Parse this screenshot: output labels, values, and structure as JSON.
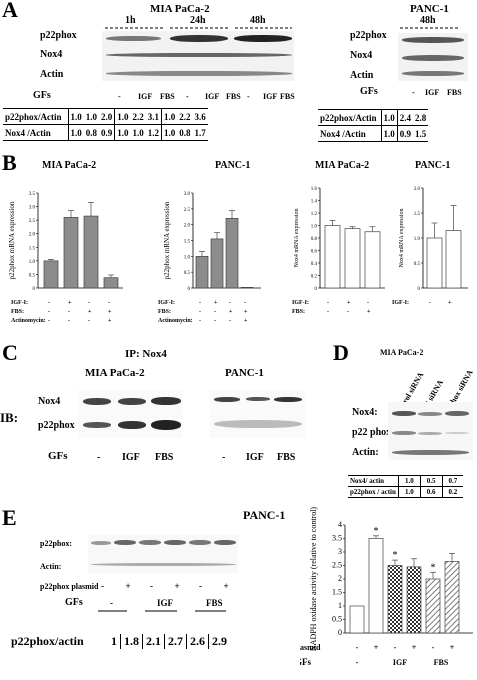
{
  "panels": [
    "A",
    "B",
    "C",
    "D",
    "E"
  ],
  "A": {
    "mia_title": "MIA PaCa-2",
    "panc_title": "PANC-1",
    "times": [
      "1h",
      "24h",
      "48h"
    ],
    "panc_time": "48h",
    "rows": [
      "p22phox",
      "Nox4",
      "Actin"
    ],
    "gfs_label": "GFs",
    "gfs": [
      "-",
      "IGF",
      "FBS"
    ],
    "ratio_label": "p22phox/Actin",
    "nox_ratio_label": "Nox4 /Actin",
    "mia_p22": [
      "1.0",
      "1.0",
      "2.0",
      "1.0",
      "2.2",
      "3.1",
      "1.0",
      "2.2",
      "3.6"
    ],
    "mia_nox": [
      "1.0",
      "0.8",
      "0.9",
      "1.0",
      "1.0",
      "1.2",
      "1.0",
      "0.8",
      "1.7"
    ],
    "panc_p22": [
      "1.0",
      "2.4",
      "2.8"
    ],
    "panc_nox": [
      "1.0",
      "0.9",
      "1.5"
    ]
  },
  "B": {
    "titles": [
      "MIA PaCa-2",
      "PANC-1",
      "MIA PaCa-2",
      "PANC-1"
    ],
    "row_labels_4": [
      "IGF-I:",
      "FBS:",
      "Actinomycin:"
    ],
    "row_labels_3": [
      "IGF-I:",
      "FBS:"
    ],
    "row_labels_2": [
      "IGF-I:"
    ],
    "signs": [
      [
        "-",
        "+",
        "-",
        "-"
      ],
      [
        "-",
        "-",
        "+",
        "+"
      ],
      [
        "-",
        "-",
        "-",
        "+"
      ]
    ],
    "signs3": [
      [
        "-",
        "+",
        "-"
      ],
      [
        "-",
        "-",
        "+"
      ]
    ],
    "signs2": [
      "-",
      "+"
    ]
  },
  "C": {
    "ip": "IP: Nox4",
    "ib": "IB:",
    "titles": [
      "MIA PaCa-2",
      "PANC-1"
    ],
    "rows": [
      "Nox4",
      "p22phox"
    ],
    "gfs_label": "GFs",
    "gfs": [
      "-",
      "IGF",
      "FBS",
      "-",
      "IGF",
      "FBS"
    ]
  },
  "D": {
    "title": "MIA PaCa-2",
    "cols": [
      "Control siRNA",
      "Nox4 siRNA",
      "p22phox siRNA"
    ],
    "rows": [
      "Nox4:",
      "p22 phox:",
      "Actin:"
    ],
    "ratio_rows": [
      {
        "label": "Nox4/ actin",
        "vals": [
          "1.0",
          "0.5",
          "0.7"
        ]
      },
      {
        "label": "p22phox / actin",
        "vals": [
          "1.0",
          "0.6",
          "0.2"
        ]
      }
    ]
  },
  "E": {
    "title": "PANC-1",
    "rows": [
      "p22phox:",
      "Actin:"
    ],
    "plasmid_label": "p22phox plasmid",
    "plasmid_signs": [
      "-",
      "+",
      "-",
      "+",
      "-",
      "+"
    ],
    "gfs_label": "GFs",
    "gfs": [
      "-",
      "IGF",
      "FBS"
    ],
    "ratio_label": "p22phox/actin",
    "ratio_vals": [
      "1",
      "1.8",
      "2.1",
      "2.7",
      "2.6",
      "2.9"
    ]
  },
  "chart_data": [
    {
      "type": "bar",
      "panel": "B1",
      "title": "MIA PaCa-2",
      "ylabel": "p22phox mRNA expression",
      "ylim": [
        0,
        3.5
      ],
      "yticks": [
        "0",
        "0.5",
        "1.0",
        "1.5",
        "2.0",
        "2.5",
        "3.0",
        "3.5"
      ],
      "values": [
        1.0,
        2.6,
        2.65,
        0.38
      ],
      "errors": [
        0.05,
        0.25,
        0.5,
        0.1
      ]
    },
    {
      "type": "bar",
      "panel": "B2",
      "title": "PANC-1",
      "ylabel": "p22phox mRNA expression",
      "ylim": [
        0,
        3.0
      ],
      "yticks": [
        "0",
        "0.5",
        "1.0",
        "1.5",
        "2.0",
        "2.5",
        "3.0"
      ],
      "values": [
        1.0,
        1.55,
        2.2,
        0.02
      ],
      "errors": [
        0.15,
        0.2,
        0.25,
        0.0
      ]
    },
    {
      "type": "bar",
      "panel": "B3",
      "title": "MIA PaCa-2",
      "ylabel": "Nox4 mRNA expression",
      "ylim": [
        0,
        1.6
      ],
      "yticks": [
        "0",
        "0.2",
        "0.4",
        "0.6",
        "0.8",
        "1.0",
        "1.2",
        "1.4",
        "1.6"
      ],
      "values": [
        1.0,
        0.95,
        0.9
      ],
      "errors": [
        0.08,
        0.03,
        0.08
      ]
    },
    {
      "type": "bar",
      "panel": "B4",
      "title": "PANC-1",
      "ylabel": "Nox4 mRNA expression",
      "ylim": [
        0,
        2.0
      ],
      "yticks": [
        "0",
        "0.5",
        "1.0",
        "1.5",
        "2.0"
      ],
      "values": [
        1.0,
        1.15
      ],
      "errors": [
        0.3,
        0.5
      ]
    },
    {
      "type": "bar",
      "panel": "E",
      "ylabel": "NADPH oxidase activity (relative to control)",
      "ylim": [
        0,
        4
      ],
      "yticks": [
        "0",
        "0.5",
        "1",
        "1.5",
        "2",
        "2.5",
        "3",
        "3.5",
        "4"
      ],
      "values": [
        1.0,
        3.5,
        2.5,
        2.45,
        2.0,
        2.65
      ],
      "errors": [
        0,
        0.1,
        0.2,
        0.3,
        0.25,
        0.3
      ],
      "stars": [
        "",
        "*",
        "*",
        "",
        "*",
        ""
      ],
      "patterns": [
        "white",
        "white",
        "check",
        "check",
        "hatch",
        "hatch"
      ]
    }
  ]
}
